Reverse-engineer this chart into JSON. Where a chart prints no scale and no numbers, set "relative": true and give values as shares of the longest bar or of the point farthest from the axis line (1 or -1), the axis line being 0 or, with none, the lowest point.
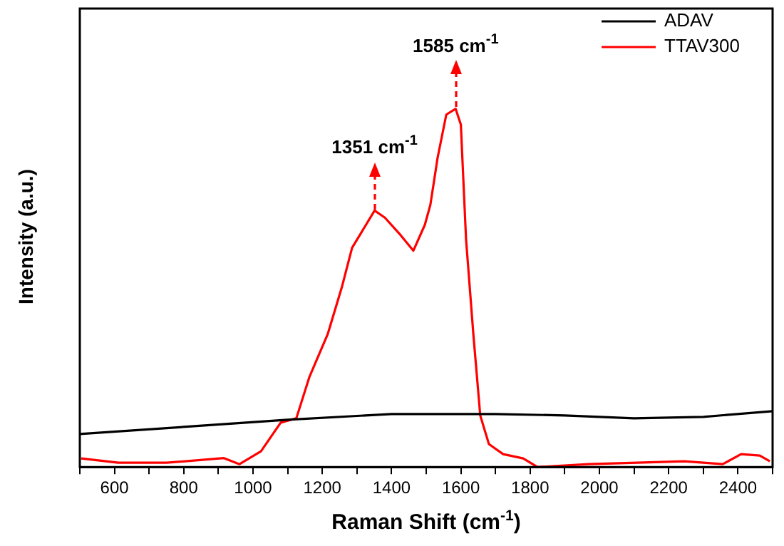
{
  "chart_data": {
    "type": "line",
    "xlabel": "Raman Shift (cm$^{-1}$)",
    "ylabel": "Intensity (a.u.)",
    "relative": true,
    "xlim": [
      500,
      2500
    ],
    "xticks": [
      {
        "value": 500,
        "label": null
      },
      600,
      {
        "value": 700,
        "label": null
      },
      800,
      {
        "value": 900,
        "label": null
      },
      1000,
      {
        "value": 1100,
        "label": null
      },
      1200,
      {
        "value": 1300,
        "label": null
      },
      1400,
      {
        "value": 1500,
        "label": null
      },
      1600,
      {
        "value": 1700,
        "label": null
      },
      1800,
      {
        "value": 1900,
        "label": null
      },
      2000,
      {
        "value": 2100,
        "label": null
      },
      2200,
      {
        "value": 2300,
        "label": null
      },
      2400,
      {
        "value": 2500,
        "label": null
      }
    ],
    "series": [
      {
        "name": "ADAV",
        "color": "#000000",
        "x": [
          500,
          800,
          1100,
          1400,
          1700,
          1900,
          2100,
          2300,
          2500
        ],
        "values": [
          0.092,
          0.112,
          0.132,
          0.148,
          0.148,
          0.144,
          0.136,
          0.14,
          0.156
        ]
      },
      {
        "name": "TTAV300",
        "color": "#ff0000",
        "x": [
          504,
          611,
          751,
          916,
          961,
          1023,
          1080,
          1125,
          1163,
          1216,
          1257,
          1286,
          1311,
          1351,
          1381,
          1422,
          1463,
          1496,
          1512,
          1533,
          1558,
          1585,
          1600,
          1615,
          1636,
          1656,
          1681,
          1722,
          1780,
          1821,
          1969,
          2109,
          2245,
          2356,
          2409,
          2463,
          2492
        ],
        "values": [
          0.024,
          0.012,
          0.012,
          0.025,
          0.008,
          0.044,
          0.124,
          0.136,
          0.252,
          0.372,
          0.504,
          0.612,
          0.652,
          0.716,
          0.696,
          0.652,
          0.604,
          0.676,
          0.732,
          0.864,
          0.984,
          1,
          0.956,
          0.636,
          0.372,
          0.144,
          0.064,
          0.036,
          0.024,
          0,
          0.008,
          0.012,
          0.016,
          0.008,
          0.036,
          0.032,
          0.016
        ]
      }
    ],
    "annotations": [
      {
        "text": "1351 cm$^{-1}$",
        "x": 1351,
        "y": 0.716
      },
      {
        "text": "1585 cm$^{-1}$",
        "x": 1585,
        "y": 1
      }
    ],
    "legend": "top right",
    "grid": false,
    "marker": "none",
    "line_style": "solid"
  }
}
